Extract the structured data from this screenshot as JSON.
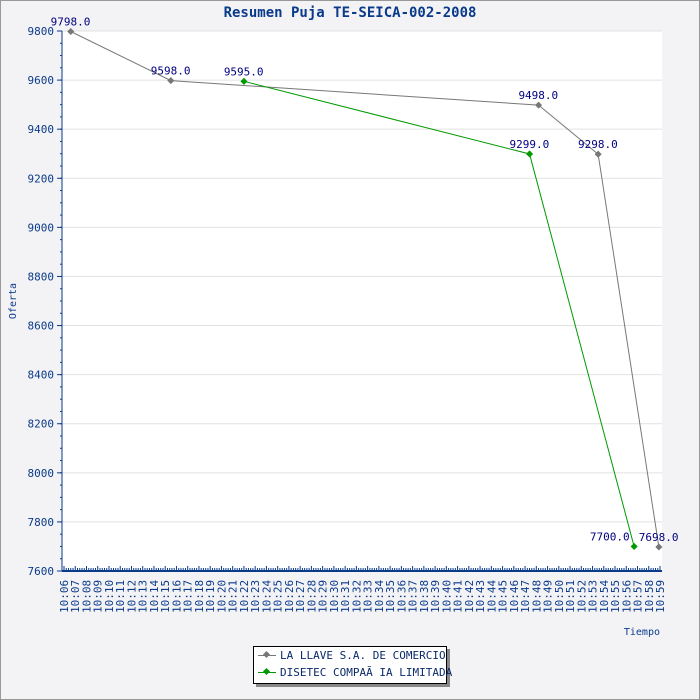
{
  "chart_data": {
    "type": "line",
    "title": "Resumen Puja TE-SEICA-002-2008",
    "xlabel": "Tiempo",
    "ylabel": "Oferta",
    "ylim": [
      7600,
      9800
    ],
    "yticks": [
      7600,
      7800,
      8000,
      8200,
      8400,
      8600,
      8800,
      9000,
      9200,
      9400,
      9600,
      9800
    ],
    "xticks": [
      "10:06",
      "10:07",
      "10:08",
      "10:09",
      "10:10",
      "10:11",
      "10:12",
      "10:13",
      "10:14",
      "10:15",
      "10:16",
      "10:17",
      "10:18",
      "10:19",
      "10:20",
      "10:21",
      "10:22",
      "10:23",
      "10:24",
      "10:25",
      "10:26",
      "10:27",
      "10:28",
      "10:29",
      "10:30",
      "10:31",
      "10:32",
      "10:33",
      "10:34",
      "10:35",
      "10:36",
      "10:37",
      "10:38",
      "10:39",
      "10:40",
      "10:41",
      "10:42",
      "10:43",
      "10:44",
      "10:45",
      "10:46",
      "10:47",
      "10:48",
      "10:49",
      "10:50",
      "10:51",
      "10:52",
      "10:53",
      "10:54",
      "10:55",
      "10:56",
      "10:57",
      "10:58",
      "10:59"
    ],
    "xrange_minutes": [
      6,
      59
    ],
    "grid": true,
    "legend_position": "bottom-center",
    "series": [
      {
        "name": "LA LLAVE S.A. DE COMERCIO",
        "color": "#777777",
        "x_minutes": [
          6.6,
          15.5,
          48.2,
          53.5,
          58.9
        ],
        "values": [
          9798,
          9598,
          9498,
          9298,
          7698
        ],
        "labels": [
          "9798.0",
          "9598.0",
          "9498.0",
          "9298.0",
          "7698.0"
        ]
      },
      {
        "name": "DISETEC COMPAÃ IA LIMITADA",
        "color": "#009900",
        "x_minutes": [
          22.0,
          47.4,
          56.7
        ],
        "values": [
          9595,
          9299,
          7700
        ],
        "labels": [
          "9595.0",
          "9299.0",
          "7700.0"
        ]
      }
    ]
  }
}
